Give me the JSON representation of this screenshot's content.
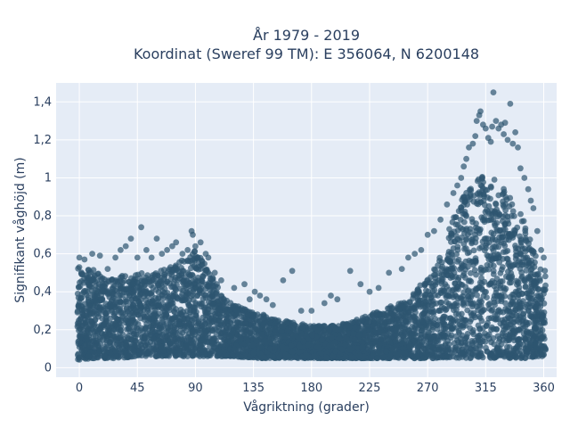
{
  "chart_data": {
    "type": "scatter",
    "title_lines": [
      "År 1979 - 2019",
      "Koordinat (Sweref 99 TM): E 356064, N 6200148"
    ],
    "xlabel": "Vågriktning (grader)",
    "ylabel": "Signifikant våghöjd (m)",
    "xlim": [
      -18,
      370
    ],
    "ylim": [
      -0.05,
      1.5
    ],
    "x_ticks": [
      0,
      45,
      90,
      135,
      180,
      225,
      270,
      315,
      360
    ],
    "x_tick_labels": [
      "0",
      "45",
      "90",
      "135",
      "180",
      "225",
      "270",
      "315",
      "360"
    ],
    "y_ticks": [
      0,
      0.2,
      0.4,
      0.6,
      0.8,
      1.0,
      1.2,
      1.4
    ],
    "y_tick_labels": [
      "0",
      "0,2",
      "0,4",
      "0,6",
      "0,8",
      "1",
      "1,2",
      "1,4"
    ],
    "grid": true,
    "plot_background": "#e5ecf6",
    "marker_color": "#2e5670",
    "envelope": {
      "x": [
        0,
        10,
        20,
        30,
        45,
        60,
        75,
        90,
        100,
        110,
        120,
        135,
        150,
        165,
        180,
        195,
        210,
        225,
        240,
        255,
        265,
        275,
        285,
        295,
        305,
        315,
        325,
        335,
        345,
        355,
        360
      ],
      "upper": [
        0.54,
        0.52,
        0.47,
        0.49,
        0.5,
        0.5,
        0.55,
        0.62,
        0.52,
        0.4,
        0.33,
        0.3,
        0.26,
        0.24,
        0.22,
        0.22,
        0.24,
        0.28,
        0.32,
        0.36,
        0.44,
        0.52,
        0.7,
        0.88,
        0.98,
        1.02,
        0.98,
        0.9,
        0.78,
        0.56,
        0.52
      ],
      "lower": [
        0.04,
        0.05,
        0.05,
        0.05,
        0.06,
        0.06,
        0.06,
        0.06,
        0.06,
        0.06,
        0.06,
        0.05,
        0.05,
        0.05,
        0.05,
        0.05,
        0.05,
        0.05,
        0.05,
        0.05,
        0.05,
        0.05,
        0.05,
        0.05,
        0.05,
        0.05,
        0.05,
        0.05,
        0.05,
        0.06,
        0.06
      ]
    },
    "outliers": [
      [
        0,
        0.58
      ],
      [
        4,
        0.57
      ],
      [
        10,
        0.6
      ],
      [
        16,
        0.59
      ],
      [
        22,
        0.52
      ],
      [
        28,
        0.58
      ],
      [
        32,
        0.62
      ],
      [
        36,
        0.64
      ],
      [
        40,
        0.68
      ],
      [
        45,
        0.58
      ],
      [
        48,
        0.74
      ],
      [
        52,
        0.62
      ],
      [
        56,
        0.58
      ],
      [
        60,
        0.68
      ],
      [
        64,
        0.6
      ],
      [
        68,
        0.62
      ],
      [
        72,
        0.64
      ],
      [
        75,
        0.66
      ],
      [
        80,
        0.6
      ],
      [
        84,
        0.62
      ],
      [
        87,
        0.72
      ],
      [
        88,
        0.7
      ],
      [
        90,
        0.64
      ],
      [
        94,
        0.66
      ],
      [
        98,
        0.6
      ],
      [
        100,
        0.58
      ],
      [
        105,
        0.5
      ],
      [
        110,
        0.46
      ],
      [
        120,
        0.42
      ],
      [
        128,
        0.44
      ],
      [
        132,
        0.36
      ],
      [
        136,
        0.4
      ],
      [
        140,
        0.38
      ],
      [
        145,
        0.36
      ],
      [
        150,
        0.33
      ],
      [
        158,
        0.46
      ],
      [
        165,
        0.51
      ],
      [
        172,
        0.3
      ],
      [
        180,
        0.3
      ],
      [
        190,
        0.34
      ],
      [
        195,
        0.38
      ],
      [
        200,
        0.36
      ],
      [
        210,
        0.51
      ],
      [
        218,
        0.44
      ],
      [
        225,
        0.4
      ],
      [
        232,
        0.42
      ],
      [
        240,
        0.5
      ],
      [
        250,
        0.52
      ],
      [
        255,
        0.58
      ],
      [
        260,
        0.6
      ],
      [
        265,
        0.62
      ],
      [
        270,
        0.7
      ],
      [
        275,
        0.72
      ],
      [
        280,
        0.78
      ],
      [
        285,
        0.86
      ],
      [
        290,
        0.92
      ],
      [
        293,
        0.96
      ],
      [
        296,
        1.0
      ],
      [
        298,
        1.06
      ],
      [
        300,
        1.1
      ],
      [
        302,
        1.16
      ],
      [
        305,
        1.18
      ],
      [
        307,
        1.22
      ],
      [
        308,
        1.3
      ],
      [
        310,
        1.33
      ],
      [
        311,
        1.35
      ],
      [
        313,
        1.28
      ],
      [
        315,
        1.26
      ],
      [
        317,
        1.21
      ],
      [
        319,
        1.19
      ],
      [
        320,
        1.27
      ],
      [
        321,
        1.45
      ],
      [
        323,
        1.3
      ],
      [
        325,
        1.26
      ],
      [
        327,
        1.28
      ],
      [
        329,
        1.23
      ],
      [
        330,
        1.29
      ],
      [
        332,
        1.2
      ],
      [
        334,
        1.39
      ],
      [
        336,
        1.18
      ],
      [
        338,
        1.24
      ],
      [
        340,
        1.16
      ],
      [
        342,
        1.05
      ],
      [
        345,
        1.0
      ],
      [
        348,
        0.94
      ],
      [
        350,
        0.88
      ],
      [
        352,
        0.84
      ],
      [
        355,
        0.72
      ],
      [
        358,
        0.62
      ],
      [
        360,
        0.58
      ]
    ]
  }
}
